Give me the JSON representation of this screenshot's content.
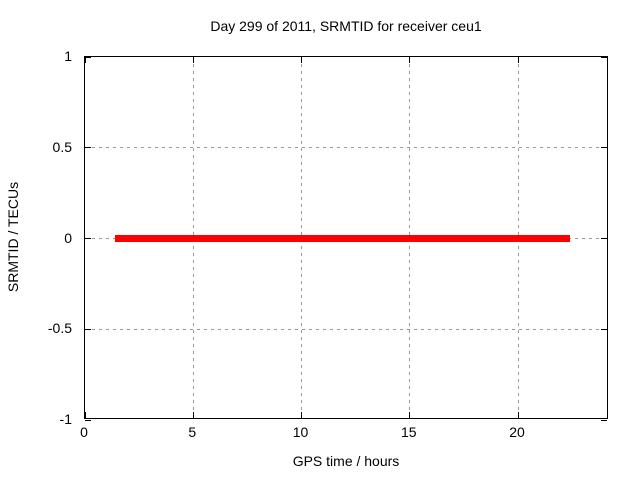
{
  "chart_data": {
    "type": "line",
    "title": "Day 299 of 2011, SRMTID for receiver ceu1",
    "xlabel": "GPS time / hours",
    "ylabel": "SRMTID / TECUs",
    "xlim": [
      0,
      24.2
    ],
    "ylim": [
      -1,
      1
    ],
    "xticks": [
      {
        "value": 0,
        "label": "0"
      },
      {
        "value": 5,
        "label": "5"
      },
      {
        "value": 10,
        "label": "10"
      },
      {
        "value": 15,
        "label": "15"
      },
      {
        "value": 20,
        "label": "20"
      }
    ],
    "yticks": [
      {
        "value": -1,
        "label": "-1"
      },
      {
        "value": -0.5,
        "label": "-0.5"
      },
      {
        "value": 0,
        "label": "0"
      },
      {
        "value": 0.5,
        "label": "0.5"
      },
      {
        "value": 1,
        "label": "1"
      }
    ],
    "grid": true,
    "legend": "none",
    "series": [
      {
        "name": "SRMTID",
        "color": "#ff0000",
        "linewidth": 7,
        "points": [
          [
            1.4,
            0
          ],
          [
            22.4,
            0
          ]
        ],
        "description": "constant value 0 TECUs from ~1.4 h to ~22.4 h GPS time"
      }
    ],
    "colors": {
      "border": "#000000",
      "grid": "#9a9a9a",
      "background": "#ffffff",
      "text": "#000000"
    }
  }
}
